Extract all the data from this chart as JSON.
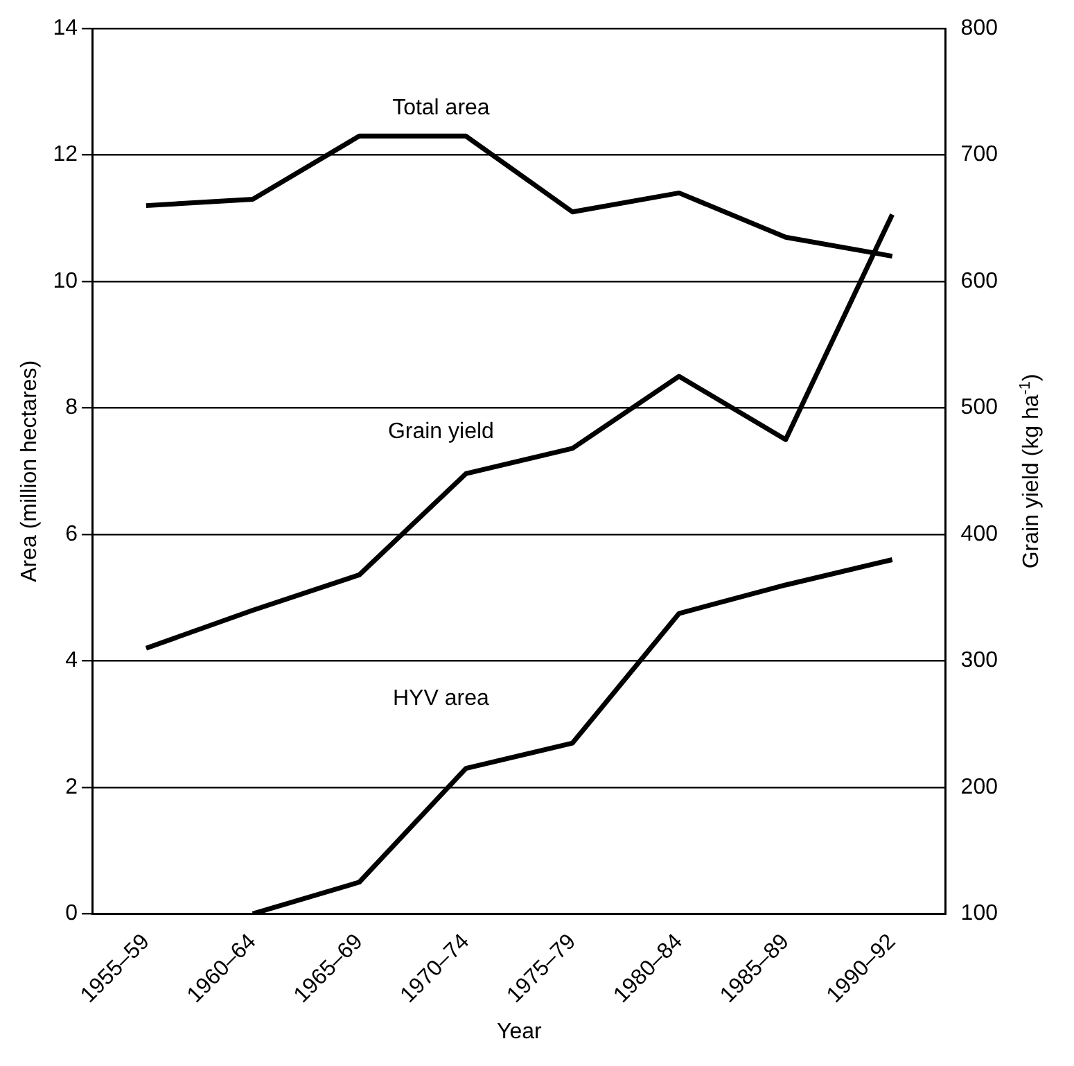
{
  "chart_data": {
    "type": "line",
    "xlabel": "Year",
    "ylabel": "Area (million hectares)",
    "y2label": "Grain yield (kg ha$^{-1}$)",
    "categories": [
      "1955–59",
      "1960–64",
      "1965–69",
      "1970–74",
      "1975–79",
      "1980–84",
      "1985–89",
      "1990–92"
    ],
    "series": [
      {
        "name": "Total area",
        "color": "#000000",
        "values": [
          11.2,
          11.3,
          12.3,
          12.3,
          11.1,
          11.4,
          10.7,
          10.4
        ]
      },
      {
        "name": "Grain yield",
        "color": "#000000",
        "axis": "y2",
        "values": [
          310,
          340,
          368,
          448,
          468,
          525,
          475,
          653
        ]
      },
      {
        "name": "HYV area",
        "color": "#000000",
        "values": [
          null,
          0,
          0.5,
          2.3,
          2.7,
          4.75,
          5.2,
          5.6
        ]
      }
    ],
    "ylim": [
      0,
      14
    ],
    "yticks": [
      0,
      2,
      4,
      6,
      8,
      10,
      12,
      14
    ],
    "y2lim": [
      100,
      800
    ],
    "y2ticks": [
      100,
      200,
      300,
      400,
      500,
      600,
      700,
      800
    ],
    "grid": "y",
    "legend": false,
    "marker": "none",
    "line_style": "solid"
  }
}
